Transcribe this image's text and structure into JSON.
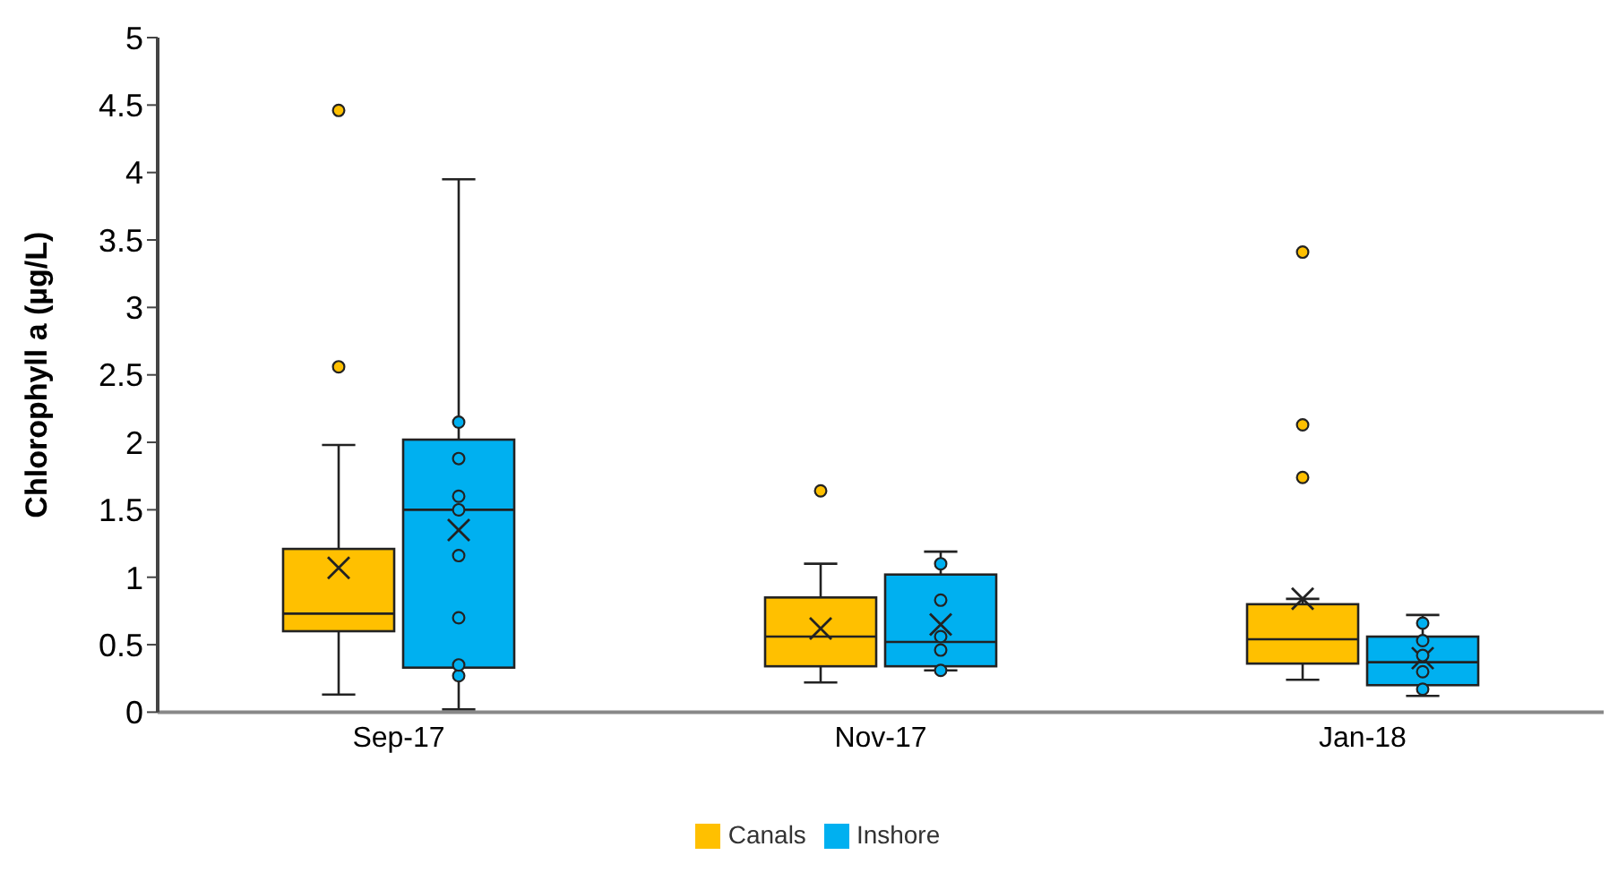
{
  "chart_data": {
    "type": "box",
    "ylabel": "Chlorophyll a (µg/L)",
    "categories": [
      "Sep-17",
      "Nov-17",
      "Jan-18"
    ],
    "series": [
      {
        "name": "Canals",
        "color": "#ffc000",
        "boxes": [
          {
            "low": 0.13,
            "q1": 0.6,
            "median": 0.73,
            "q3": 1.21,
            "high": 1.98,
            "mean": 1.07,
            "outliers": [
              2.56,
              4.46
            ]
          },
          {
            "low": 0.22,
            "q1": 0.34,
            "median": 0.56,
            "q3": 0.85,
            "high": 1.1,
            "mean": 0.62,
            "outliers": [
              1.64
            ]
          },
          {
            "low": 0.24,
            "q1": 0.36,
            "median": 0.54,
            "q3": 0.8,
            "high": 0.84,
            "mean": 0.84,
            "outliers": [
              1.74,
              2.13,
              3.41
            ]
          }
        ]
      },
      {
        "name": "Inshore",
        "color": "#00b0f0",
        "boxes": [
          {
            "low": 0.02,
            "q1": 0.33,
            "median": 1.5,
            "q3": 2.02,
            "high": 3.95,
            "mean": 1.35,
            "outliers": [
              0.27,
              0.35,
              0.7,
              1.16,
              1.5,
              1.6,
              1.88,
              2.15
            ]
          },
          {
            "low": 0.31,
            "q1": 0.34,
            "median": 0.52,
            "q3": 1.02,
            "high": 1.19,
            "mean": 0.65,
            "outliers": [
              0.31,
              0.46,
              0.56,
              0.83,
              1.1
            ]
          },
          {
            "low": 0.12,
            "q1": 0.2,
            "median": 0.37,
            "q3": 0.56,
            "high": 0.72,
            "mean": 0.4,
            "outliers": [
              0.17,
              0.3,
              0.42,
              0.53,
              0.66
            ]
          }
        ]
      }
    ],
    "ylim": [
      0,
      5
    ],
    "yticks": [
      0,
      0.5,
      1,
      1.5,
      2,
      2.5,
      3,
      3.5,
      4,
      4.5,
      5
    ],
    "grid": false,
    "legend": "bottom"
  }
}
